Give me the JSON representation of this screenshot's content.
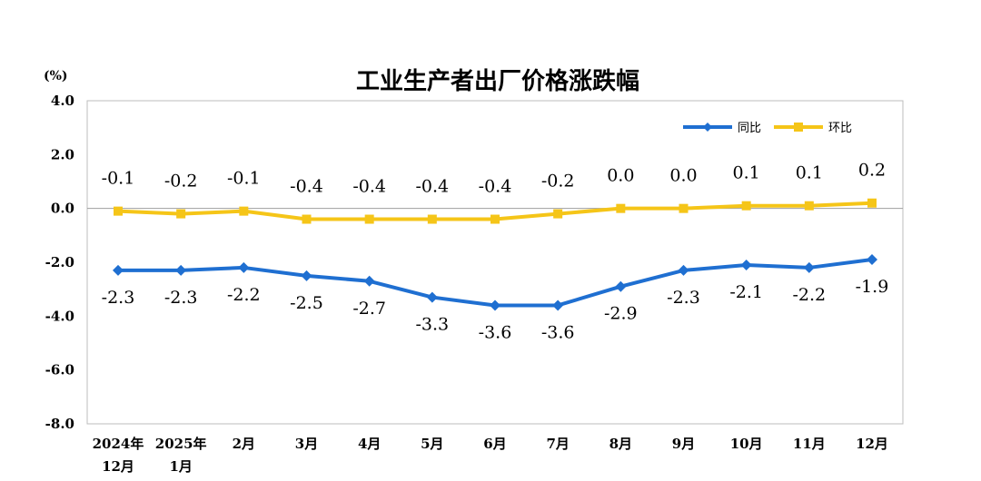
{
  "chart_data": {
    "type": "line",
    "title": "工业生产者出厂价格涨跌幅",
    "ylabel": "(%)",
    "xlabel": "",
    "ylim": [
      -8.0,
      4.0
    ],
    "yticks": [
      "4.0",
      "2.0",
      "0.0",
      "-2.0",
      "-4.0",
      "-6.0",
      "-8.0"
    ],
    "categories": [
      [
        "2024年",
        "12月"
      ],
      [
        "2025年",
        "1月"
      ],
      [
        "2月"
      ],
      [
        "3月"
      ],
      [
        "4月"
      ],
      [
        "5月"
      ],
      [
        "6月"
      ],
      [
        "7月"
      ],
      [
        "8月"
      ],
      [
        "9月"
      ],
      [
        "10月"
      ],
      [
        "11月"
      ],
      [
        "12月"
      ]
    ],
    "legend_position": "top-right",
    "series": [
      {
        "name": "同比",
        "color": "#1f6fd1",
        "marker": "diamond",
        "values": [
          -2.3,
          -2.3,
          -2.2,
          -2.5,
          -2.7,
          -3.3,
          -3.6,
          -3.6,
          -2.9,
          -2.3,
          -2.1,
          -2.2,
          -1.9
        ],
        "labels": [
          "-2.3",
          "-2.3",
          "-2.2",
          "-2.5",
          "-2.7",
          "-3.3",
          "-3.6",
          "-3.6",
          "-2.9",
          "-2.3",
          "-2.1",
          "-2.2",
          "-1.9"
        ]
      },
      {
        "name": "环比",
        "color": "#f5c518",
        "marker": "square",
        "values": [
          -0.1,
          -0.2,
          -0.1,
          -0.4,
          -0.4,
          -0.4,
          -0.4,
          -0.2,
          0.0,
          0.0,
          0.1,
          0.1,
          0.2
        ],
        "labels": [
          "-0.1",
          "-0.2",
          "-0.1",
          "-0.4",
          "-0.4",
          "-0.4",
          "-0.4",
          "-0.2",
          "0.0",
          "0.0",
          "0.1",
          "0.1",
          "0.2"
        ]
      }
    ]
  }
}
